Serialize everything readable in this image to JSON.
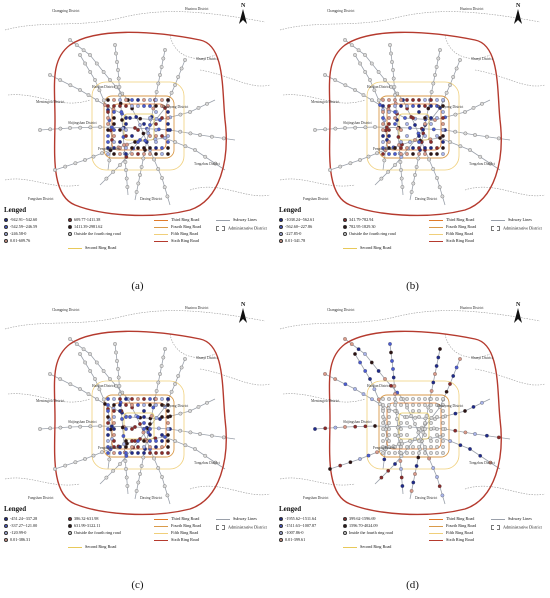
{
  "legend_title": "Lenged",
  "north_label": "N",
  "districts": {
    "changping": "Changping District",
    "huairou": "Huairou District",
    "shunyi": "Shunyi District",
    "haidian": "Haidian District",
    "mentougou": "Mentougou District",
    "chaoyang": "Chaoyang District",
    "tongzhou": "Tongzhou District",
    "fengtai": "Fengtai District",
    "fangshan": "Fangshan District",
    "daxing": "Daxing District",
    "shijingshan": "Shijingshan District"
  },
  "road_legend": [
    {
      "label": "Third Ring Road",
      "color": "#e07a2a"
    },
    {
      "label": "Fourth Ring Road",
      "color": "#d99a4a"
    },
    {
      "label": "Fifth Ring Road",
      "color": "#f0cf7a"
    },
    {
      "label": "Sixth Ring Road",
      "color": "#b53a2e"
    },
    {
      "label": "Second Ring Road",
      "color": "#e8c95a"
    }
  ],
  "other_legend": {
    "subway": "Subway Lines",
    "admin": "Administrative District"
  },
  "panels": [
    {
      "caption": "(a)",
      "classes": [
        {
          "label": "-942.91--542.60",
          "color": "#1f2a8a"
        },
        {
          "label": "-542.59--246.59",
          "color": "#4a5bd0"
        },
        {
          "label": "-246.58-0",
          "color": "#a9b4e8"
        },
        {
          "label": "0.01-609.76",
          "color": "#d99a8a"
        },
        {
          "label": "609.77-1411.38",
          "color": "#8a2a2a"
        },
        {
          "label": "1411.39-2981.62",
          "color": "#2b1212"
        },
        {
          "label": "Outside the fourth ring road",
          "color": "#d8d8d8"
        }
      ]
    },
    {
      "caption": "(b)",
      "classes": [
        {
          "label": "-1038.24--562.61",
          "color": "#1f2a8a"
        },
        {
          "label": "-562.60--227.86",
          "color": "#4a5bd0"
        },
        {
          "label": "-227.85-0",
          "color": "#a9b4e8"
        },
        {
          "label": "0.01-341.78",
          "color": "#d99a8a"
        },
        {
          "label": "341.79-782.94",
          "color": "#8a2a2a"
        },
        {
          "label": "782.95-1829.30",
          "color": "#2b1212"
        },
        {
          "label": "Outside the fourth ring road",
          "color": "#d8d8d8"
        }
      ]
    },
    {
      "caption": "(c)",
      "classes": [
        {
          "label": "-451.24--337.28",
          "color": "#1f2a8a"
        },
        {
          "label": "-337.27--121.00",
          "color": "#4a5bd0"
        },
        {
          "label": "-120.99-0",
          "color": "#a9b4e8"
        },
        {
          "label": "0.01-386.31",
          "color": "#d99a8a"
        },
        {
          "label": "386.32-631.98",
          "color": "#8a2a2a"
        },
        {
          "label": "631.99-3122.11",
          "color": "#2b1212"
        },
        {
          "label": "Outside the fourth ring road",
          "color": "#d8d8d8"
        }
      ]
    },
    {
      "caption": "(d)",
      "classes": [
        {
          "label": "-1955.62--1511.64",
          "color": "#1f2a8a"
        },
        {
          "label": "-1511.63--1007.87",
          "color": "#4a5bd0"
        },
        {
          "label": "-1007.86-0",
          "color": "#a9b4e8"
        },
        {
          "label": "0.01-399.61",
          "color": "#d99a8a"
        },
        {
          "label": "399.62-1596.69",
          "color": "#8a2a2a"
        },
        {
          "label": "1596.70-4024.09",
          "color": "#2b1212"
        },
        {
          "label": "Inside the fourth ring road",
          "color": "#d8d8d8"
        }
      ]
    }
  ]
}
